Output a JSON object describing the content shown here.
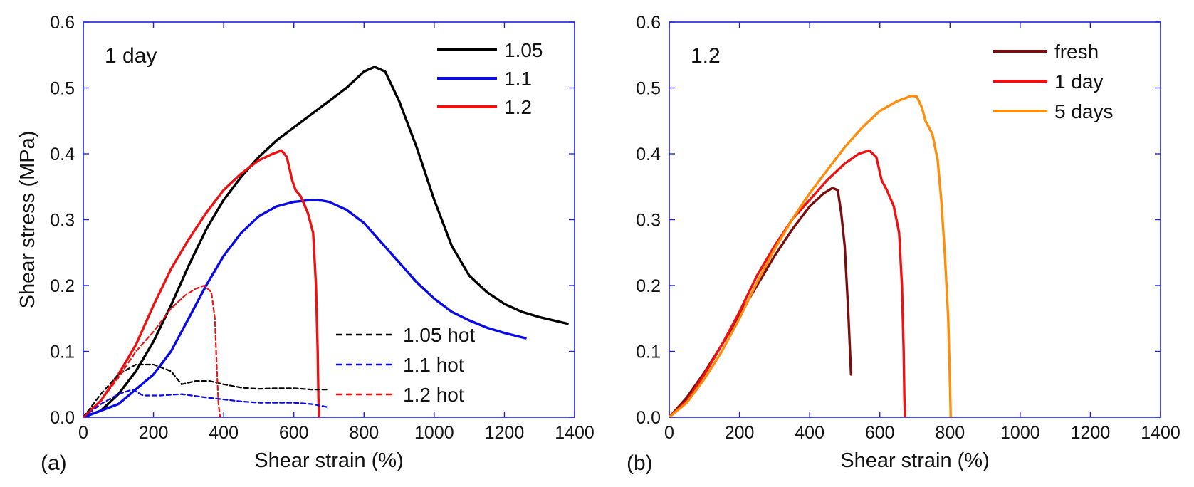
{
  "chart_data": [
    {
      "type": "line",
      "panel_label": "(a)",
      "annotation": "1 day",
      "xlabel": "Shear strain (%)",
      "ylabel": "Shear stress (MPa)",
      "xlim": [
        0,
        1400
      ],
      "ylim": [
        0,
        0.6
      ],
      "xticks": [
        0,
        200,
        400,
        600,
        800,
        1000,
        1200,
        1400
      ],
      "yticks": [
        "0.0",
        "0.1",
        "0.2",
        "0.3",
        "0.4",
        "0.5",
        "0.6"
      ],
      "legends": [
        {
          "placement": "top-right",
          "entries": [
            "1.05",
            "1.1",
            "1.2"
          ]
        },
        {
          "placement": "bottom-right",
          "entries": [
            "1.05 hot",
            "1.1 hot",
            "1.2 hot"
          ]
        }
      ],
      "series": [
        {
          "name": "1.05",
          "color": "#000000",
          "dash": "solid",
          "legend": 0,
          "x": [
            0,
            50,
            100,
            150,
            200,
            250,
            300,
            350,
            400,
            450,
            500,
            550,
            600,
            650,
            700,
            750,
            800,
            830,
            860,
            900,
            950,
            1000,
            1050,
            1100,
            1150,
            1200,
            1250,
            1300,
            1380
          ],
          "y": [
            0,
            0.01,
            0.035,
            0.07,
            0.115,
            0.17,
            0.23,
            0.285,
            0.33,
            0.365,
            0.395,
            0.42,
            0.44,
            0.46,
            0.48,
            0.5,
            0.525,
            0.532,
            0.525,
            0.48,
            0.41,
            0.33,
            0.26,
            0.215,
            0.19,
            0.172,
            0.16,
            0.152,
            0.142
          ]
        },
        {
          "name": "1.1",
          "color": "#0a0ae6",
          "dash": "solid",
          "legend": 0,
          "x": [
            0,
            100,
            200,
            250,
            300,
            350,
            400,
            450,
            500,
            550,
            600,
            650,
            680,
            700,
            750,
            800,
            850,
            900,
            950,
            1000,
            1050,
            1100,
            1150,
            1200,
            1260
          ],
          "y": [
            0,
            0.02,
            0.065,
            0.1,
            0.15,
            0.2,
            0.245,
            0.28,
            0.305,
            0.32,
            0.327,
            0.33,
            0.329,
            0.327,
            0.315,
            0.295,
            0.265,
            0.235,
            0.205,
            0.18,
            0.16,
            0.147,
            0.136,
            0.128,
            0.12
          ]
        },
        {
          "name": "1.2",
          "color": "#ee1111",
          "dash": "solid",
          "legend": 0,
          "x": [
            0,
            50,
            100,
            150,
            200,
            250,
            300,
            350,
            400,
            450,
            500,
            540,
            565,
            580,
            595,
            605,
            620,
            640,
            655,
            663,
            668,
            670,
            672
          ],
          "y": [
            0,
            0.025,
            0.065,
            0.11,
            0.17,
            0.225,
            0.27,
            0.31,
            0.345,
            0.37,
            0.39,
            0.4,
            0.405,
            0.395,
            0.36,
            0.345,
            0.335,
            0.31,
            0.28,
            0.2,
            0.1,
            0.03,
            0
          ]
        },
        {
          "name": "1.05 hot",
          "color": "#000000",
          "dash": "dashed",
          "legend": 1,
          "x": [
            0,
            50,
            100,
            150,
            200,
            250,
            280,
            320,
            360,
            400,
            450,
            500,
            550,
            600,
            650,
            700
          ],
          "y": [
            0,
            0.035,
            0.065,
            0.08,
            0.08,
            0.07,
            0.05,
            0.055,
            0.055,
            0.05,
            0.045,
            0.043,
            0.044,
            0.044,
            0.042,
            0.042
          ]
        },
        {
          "name": "1.1 hot",
          "color": "#0a0ae6",
          "dash": "dashed",
          "legend": 1,
          "x": [
            0,
            50,
            100,
            140,
            170,
            220,
            280,
            350,
            400,
            450,
            500,
            550,
            600,
            650,
            700
          ],
          "y": [
            0,
            0.02,
            0.035,
            0.042,
            0.033,
            0.033,
            0.035,
            0.03,
            0.027,
            0.024,
            0.022,
            0.022,
            0.022,
            0.02,
            0.015
          ]
        },
        {
          "name": "1.2 hot",
          "color": "#ee1111",
          "dash": "dashed",
          "legend": 1,
          "x": [
            0,
            50,
            100,
            150,
            200,
            250,
            290,
            320,
            345,
            365,
            375,
            380,
            385,
            390
          ],
          "y": [
            0,
            0.025,
            0.06,
            0.1,
            0.13,
            0.165,
            0.185,
            0.195,
            0.2,
            0.19,
            0.15,
            0.08,
            0.02,
            0
          ]
        }
      ]
    },
    {
      "type": "line",
      "panel_label": "(b)",
      "annotation": "1.2",
      "xlabel": "Shear strain (%)",
      "ylabel": "",
      "xlim": [
        0,
        1400
      ],
      "ylim": [
        0,
        0.6
      ],
      "xticks": [
        0,
        200,
        400,
        600,
        800,
        1000,
        1200,
        1400
      ],
      "yticks": [
        "0.0",
        "0.1",
        "0.2",
        "0.3",
        "0.4",
        "0.5",
        "0.6"
      ],
      "legends": [
        {
          "placement": "top-right",
          "entries": [
            "fresh",
            "1 day",
            "5 days"
          ]
        }
      ],
      "series": [
        {
          "name": "fresh",
          "color": "#7a0e0e",
          "dash": "solid",
          "legend": 0,
          "x": [
            0,
            50,
            100,
            150,
            200,
            250,
            300,
            350,
            400,
            440,
            465,
            480,
            490,
            500,
            510,
            518
          ],
          "y": [
            0,
            0.03,
            0.068,
            0.11,
            0.155,
            0.2,
            0.245,
            0.285,
            0.32,
            0.34,
            0.348,
            0.345,
            0.31,
            0.26,
            0.16,
            0.065
          ]
        },
        {
          "name": "1 day",
          "color": "#ee1111",
          "dash": "solid",
          "legend": 0,
          "x": [
            0,
            50,
            100,
            150,
            200,
            250,
            300,
            350,
            400,
            450,
            500,
            540,
            570,
            590,
            605,
            620,
            640,
            655,
            663,
            668,
            670,
            672
          ],
          "y": [
            0,
            0.025,
            0.065,
            0.11,
            0.16,
            0.215,
            0.26,
            0.3,
            0.33,
            0.36,
            0.385,
            0.4,
            0.405,
            0.395,
            0.36,
            0.345,
            0.32,
            0.28,
            0.2,
            0.1,
            0.03,
            0
          ]
        },
        {
          "name": "5 days",
          "color": "#ff8c0a",
          "dash": "solid",
          "legend": 0,
          "x": [
            0,
            50,
            100,
            150,
            200,
            250,
            300,
            350,
            400,
            450,
            500,
            550,
            600,
            650,
            690,
            705,
            720,
            730,
            750,
            765,
            775,
            785,
            795,
            800,
            802
          ],
          "y": [
            0,
            0.022,
            0.058,
            0.1,
            0.15,
            0.205,
            0.255,
            0.3,
            0.34,
            0.375,
            0.41,
            0.44,
            0.465,
            0.48,
            0.488,
            0.487,
            0.47,
            0.45,
            0.43,
            0.39,
            0.33,
            0.25,
            0.15,
            0.05,
            0
          ]
        }
      ]
    }
  ]
}
